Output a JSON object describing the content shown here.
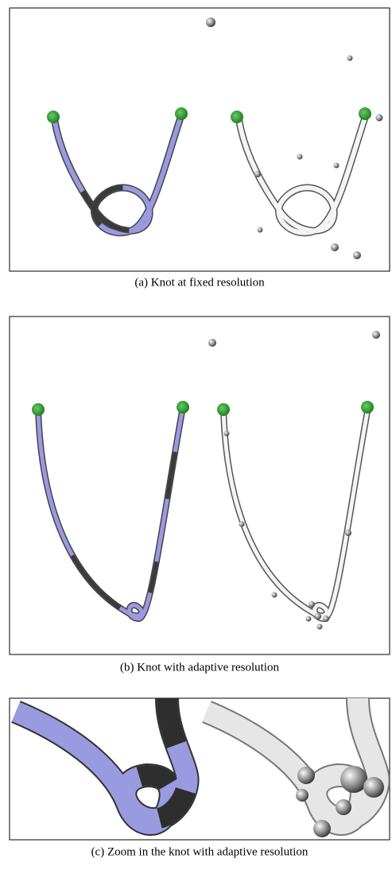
{
  "figures": [
    {
      "caption": "(a)  Knot at fixed resolution"
    },
    {
      "caption": "(b)  Knot with adaptive resolution"
    },
    {
      "caption": "(c)  Zoom in the knot with adaptive resolution"
    }
  ]
}
